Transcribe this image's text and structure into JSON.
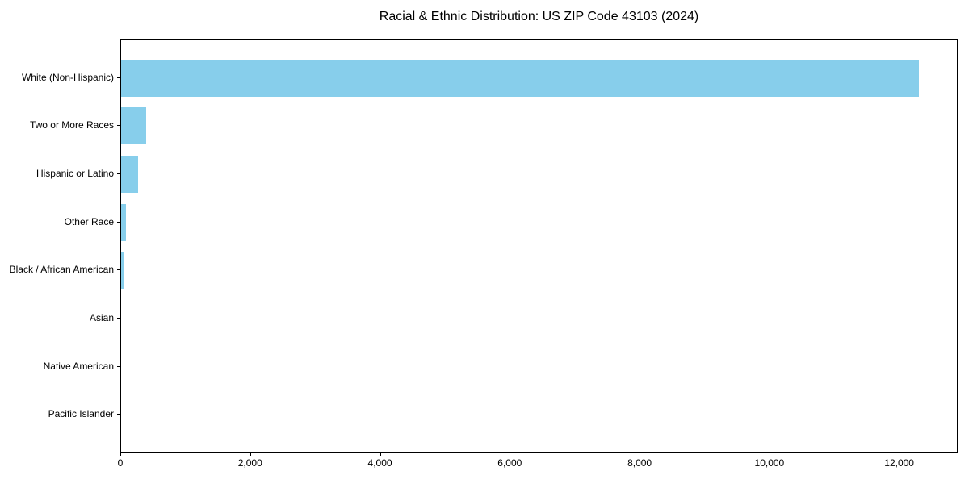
{
  "title": "Racial & Ethnic Distribution: US ZIP Code 43103 (2024)",
  "colors": {
    "bar": "#87CEEB",
    "axis": "#000000",
    "background": "#FFFFFF",
    "text": "#000000"
  },
  "chart_data": {
    "type": "bar",
    "orientation": "horizontal",
    "title": "Racial & Ethnic Distribution: US ZIP Code 43103 (2024)",
    "categories": [
      "White (Non-Hispanic)",
      "Two or More Races",
      "Hispanic or Latino",
      "Other Race",
      "Black / African American",
      "Asian",
      "Native American",
      "Pacific Islander"
    ],
    "values": [
      12310,
      390,
      265,
      80,
      55,
      0,
      0,
      0
    ],
    "xlabel": "",
    "ylabel": "",
    "xlim": [
      0,
      12900
    ],
    "xticks": [
      0,
      2000,
      4000,
      6000,
      8000,
      10000,
      12000
    ],
    "xtick_labels": [
      "0",
      "2,000",
      "4,000",
      "6,000",
      "8,000",
      "10,000",
      "12,000"
    ],
    "grid": false,
    "legend": null
  }
}
